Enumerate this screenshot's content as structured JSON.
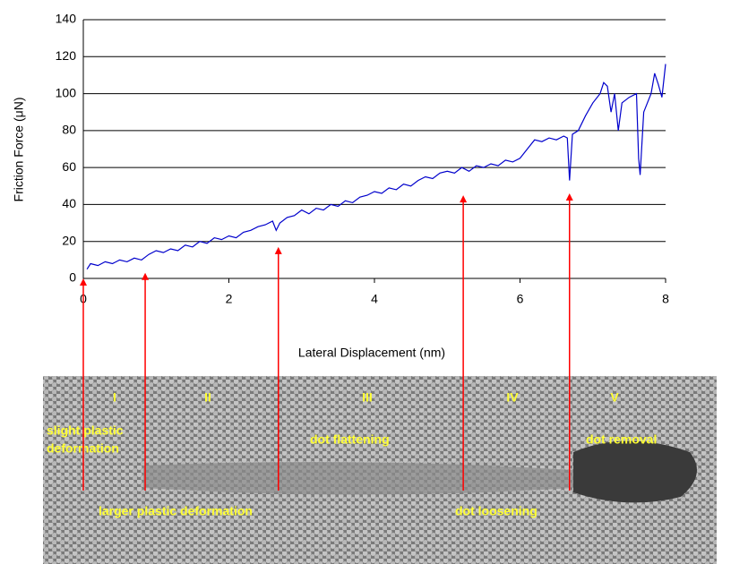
{
  "chart_data": {
    "type": "line",
    "y_label": "Friction Force (μN)",
    "x_label": "Lateral Displacement (nm)",
    "xlim": [
      0,
      8
    ],
    "xticks": [
      0,
      2,
      4,
      6,
      8
    ],
    "ylim": [
      0,
      140
    ],
    "yticks": [
      0,
      20,
      40,
      60,
      80,
      100,
      120,
      140
    ],
    "grid": true,
    "series": [
      {
        "color": "#0000cc",
        "x": [
          0.05,
          0.1,
          0.2,
          0.3,
          0.4,
          0.5,
          0.6,
          0.7,
          0.8,
          0.9,
          1.0,
          1.1,
          1.2,
          1.3,
          1.4,
          1.5,
          1.6,
          1.7,
          1.8,
          1.9,
          2.0,
          2.1,
          2.2,
          2.3,
          2.4,
          2.5,
          2.6,
          2.65,
          2.7,
          2.8,
          2.9,
          3.0,
          3.1,
          3.2,
          3.3,
          3.4,
          3.5,
          3.6,
          3.7,
          3.8,
          3.9,
          4.0,
          4.1,
          4.2,
          4.3,
          4.4,
          4.5,
          4.6,
          4.7,
          4.8,
          4.9,
          5.0,
          5.1,
          5.2,
          5.3,
          5.4,
          5.5,
          5.6,
          5.7,
          5.8,
          5.9,
          6.0,
          6.1,
          6.2,
          6.3,
          6.4,
          6.5,
          6.6,
          6.65,
          6.68,
          6.72,
          6.8,
          6.9,
          7.0,
          7.1,
          7.15,
          7.2,
          7.25,
          7.3,
          7.35,
          7.4,
          7.5,
          7.6,
          7.63,
          7.65,
          7.7,
          7.8,
          7.85,
          7.9,
          7.95,
          8.0
        ],
        "values": [
          5,
          8,
          7,
          9,
          8,
          10,
          9,
          11,
          10,
          13,
          15,
          14,
          16,
          15,
          18,
          17,
          20,
          19,
          22,
          21,
          23,
          22,
          25,
          26,
          28,
          29,
          31,
          26,
          30,
          33,
          34,
          37,
          35,
          38,
          37,
          40,
          39,
          42,
          41,
          44,
          45,
          47,
          46,
          49,
          48,
          51,
          50,
          53,
          55,
          54,
          57,
          58,
          57,
          60,
          58,
          61,
          60,
          62,
          61,
          64,
          63,
          65,
          70,
          75,
          74,
          76,
          75,
          77,
          76,
          53,
          78,
          80,
          88,
          95,
          100,
          106,
          104,
          90,
          100,
          80,
          95,
          98,
          100,
          65,
          56,
          90,
          100,
          111,
          105,
          98,
          116
        ]
      }
    ],
    "arrows": [
      {
        "x": 0,
        "y": 0
      },
      {
        "x": 0.85,
        "y": 3
      },
      {
        "x": 2.68,
        "y": 17
      },
      {
        "x": 5.22,
        "y": 45
      },
      {
        "x": 6.68,
        "y": 46
      }
    ],
    "image_annotations": {
      "stages": [
        "I",
        "II",
        "III",
        "IV",
        "V"
      ],
      "labels": [
        "slight plastic",
        "deformation",
        "larger plastic deformation",
        "dot flattening",
        "dot loosening",
        "dot removal"
      ]
    }
  }
}
